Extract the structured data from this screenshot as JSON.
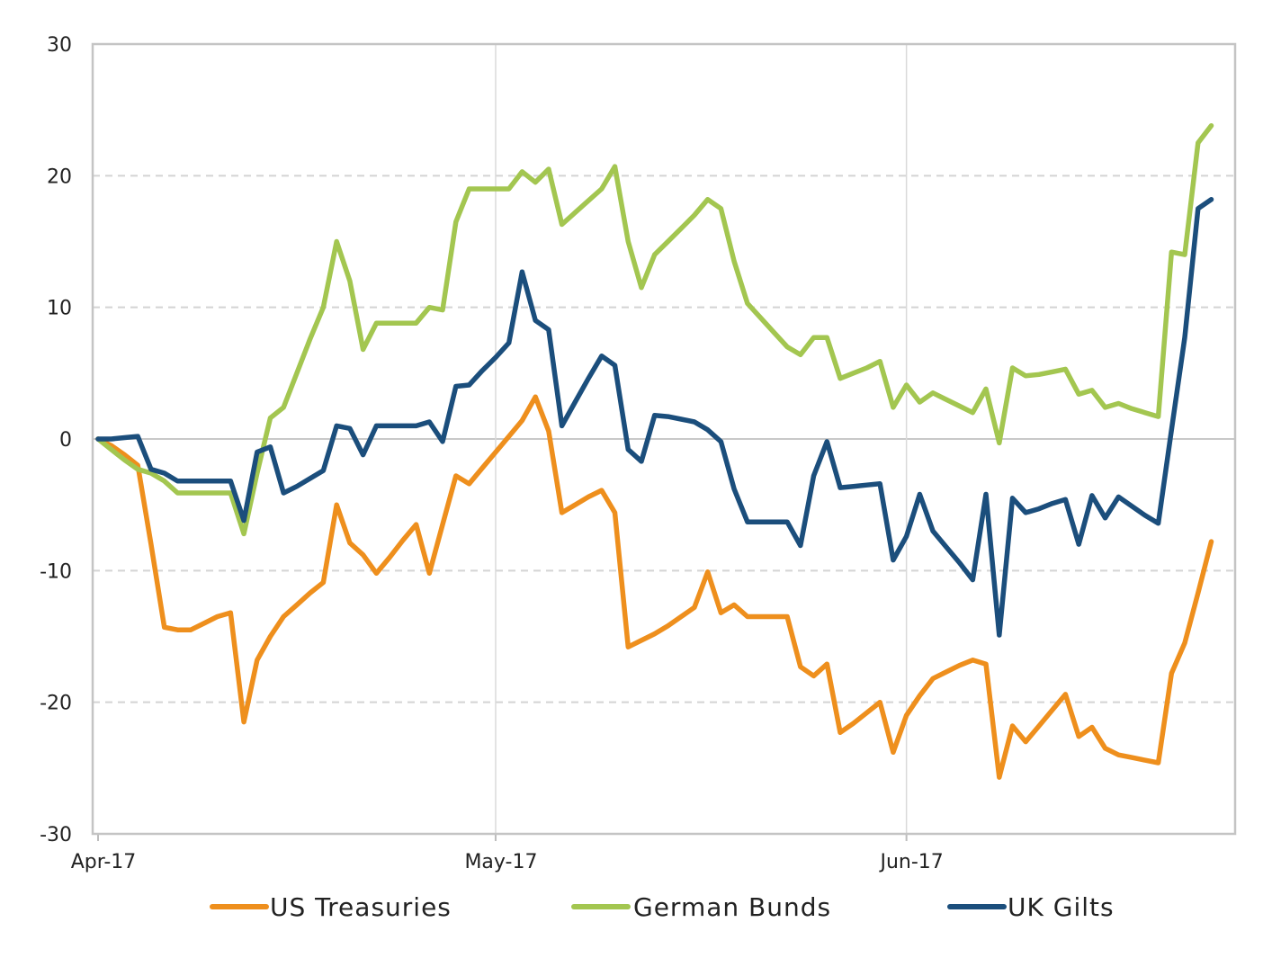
{
  "chart_data": {
    "type": "line",
    "title": "",
    "xlabel": "",
    "ylabel": "",
    "ylim": [
      -30,
      30
    ],
    "yticks": [
      30,
      20,
      10,
      0,
      -10,
      -20,
      -30
    ],
    "xticks": [
      {
        "label": "Apr-17",
        "x": 0
      },
      {
        "label": "May-17",
        "x": 30
      },
      {
        "label": "Jun-17",
        "x": 61
      }
    ],
    "xlim": [
      0,
      85
    ],
    "grid": "horizontal dashed, vertical solid at month starts",
    "legend_position": "bottom",
    "series": [
      {
        "name": "US Treasuries",
        "color": "#EE8F1D",
        "points": [
          [
            0,
            0
          ],
          [
            1,
            -0.5
          ],
          [
            2,
            -1.2
          ],
          [
            3,
            -2
          ],
          [
            4,
            -8
          ],
          [
            5,
            -14.3
          ],
          [
            6,
            -14.5
          ],
          [
            7,
            -14.5
          ],
          [
            8,
            -14
          ],
          [
            9,
            -13.5
          ],
          [
            10,
            -13.2
          ],
          [
            11,
            -21.5
          ],
          [
            12,
            -16.8
          ],
          [
            13,
            -15
          ],
          [
            14,
            -13.5
          ],
          [
            15,
            -12.6
          ],
          [
            16,
            -11.7
          ],
          [
            17,
            -10.9
          ],
          [
            18,
            -5
          ],
          [
            19,
            -7.9
          ],
          [
            20,
            -8.8
          ],
          [
            21,
            -10.2
          ],
          [
            22,
            -9
          ],
          [
            23,
            -7.7
          ],
          [
            24,
            -6.5
          ],
          [
            25,
            -10.2
          ],
          [
            26,
            -6.5
          ],
          [
            27,
            -2.8
          ],
          [
            28,
            -3.4
          ],
          [
            29,
            -2.2
          ],
          [
            30,
            -1
          ],
          [
            31,
            0.2
          ],
          [
            32,
            1.4
          ],
          [
            33,
            3.2
          ],
          [
            34,
            0.6
          ],
          [
            35,
            -5.6
          ],
          [
            36,
            -5
          ],
          [
            37,
            -4.4
          ],
          [
            38,
            -3.9
          ],
          [
            39,
            -5.6
          ],
          [
            40,
            -15.8
          ],
          [
            41,
            -15.3
          ],
          [
            42,
            -14.8
          ],
          [
            43,
            -14.2
          ],
          [
            44,
            -13.5
          ],
          [
            45,
            -12.8
          ],
          [
            46,
            -10.1
          ],
          [
            47,
            -13.2
          ],
          [
            48,
            -12.6
          ],
          [
            49,
            -13.5
          ],
          [
            50,
            -13.5
          ],
          [
            51,
            -13.5
          ],
          [
            52,
            -13.5
          ],
          [
            53,
            -17.3
          ],
          [
            54,
            -18
          ],
          [
            55,
            -17.1
          ],
          [
            56,
            -22.3
          ],
          [
            57,
            -21.6
          ],
          [
            58,
            -20.8
          ],
          [
            59,
            -20
          ],
          [
            60,
            -23.8
          ],
          [
            61,
            -21
          ],
          [
            62,
            -19.5
          ],
          [
            63,
            -18.2
          ],
          [
            64,
            -17.7
          ],
          [
            65,
            -17.2
          ],
          [
            66,
            -16.8
          ],
          [
            67,
            -17.1
          ],
          [
            68,
            -25.7
          ],
          [
            69,
            -21.8
          ],
          [
            70,
            -23
          ],
          [
            71,
            -21.8
          ],
          [
            72,
            -20.6
          ],
          [
            73,
            -19.4
          ],
          [
            74,
            -22.6
          ],
          [
            75,
            -21.9
          ],
          [
            76,
            -23.5
          ],
          [
            77,
            -24
          ],
          [
            78,
            -24.2
          ],
          [
            79,
            -24.4
          ],
          [
            80,
            -24.6
          ],
          [
            81,
            -17.8
          ],
          [
            82,
            -15.5
          ],
          [
            83,
            -11.7
          ],
          [
            84,
            -7.8
          ]
        ]
      },
      {
        "name": "German Bunds",
        "color": "#A3C650",
        "points": [
          [
            0,
            0
          ],
          [
            1,
            -0.8
          ],
          [
            2,
            -1.6
          ],
          [
            3,
            -2.3
          ],
          [
            4,
            -2.6
          ],
          [
            5,
            -3.2
          ],
          [
            6,
            -4.1
          ],
          [
            7,
            -4.1
          ],
          [
            8,
            -4.1
          ],
          [
            9,
            -4.1
          ],
          [
            10,
            -4.1
          ],
          [
            11,
            -7.2
          ],
          [
            12,
            -2.6
          ],
          [
            13,
            1.6
          ],
          [
            14,
            2.4
          ],
          [
            15,
            5
          ],
          [
            16,
            7.6
          ],
          [
            17,
            10
          ],
          [
            18,
            15
          ],
          [
            19,
            12
          ],
          [
            20,
            6.8
          ],
          [
            21,
            8.8
          ],
          [
            22,
            8.8
          ],
          [
            23,
            8.8
          ],
          [
            24,
            8.8
          ],
          [
            25,
            10
          ],
          [
            26,
            9.8
          ],
          [
            27,
            16.5
          ],
          [
            28,
            19
          ],
          [
            29,
            19
          ],
          [
            30,
            19
          ],
          [
            31,
            19
          ],
          [
            32,
            20.3
          ],
          [
            33,
            19.5
          ],
          [
            34,
            20.5
          ],
          [
            35,
            16.3
          ],
          [
            36,
            17.2
          ],
          [
            37,
            18.1
          ],
          [
            38,
            19
          ],
          [
            39,
            20.7
          ],
          [
            40,
            15
          ],
          [
            41,
            11.5
          ],
          [
            42,
            14
          ],
          [
            43,
            15
          ],
          [
            44,
            16
          ],
          [
            45,
            17
          ],
          [
            46,
            18.2
          ],
          [
            47,
            17.5
          ],
          [
            48,
            13.5
          ],
          [
            49,
            10.3
          ],
          [
            50,
            9.2
          ],
          [
            51,
            8.1
          ],
          [
            52,
            7
          ],
          [
            53,
            6.4
          ],
          [
            54,
            7.7
          ],
          [
            55,
            7.7
          ],
          [
            56,
            4.6
          ],
          [
            57,
            5
          ],
          [
            58,
            5.4
          ],
          [
            59,
            5.9
          ],
          [
            60,
            2.4
          ],
          [
            61,
            4.1
          ],
          [
            62,
            2.8
          ],
          [
            63,
            3.5
          ],
          [
            64,
            3
          ],
          [
            65,
            2.5
          ],
          [
            66,
            2
          ],
          [
            67,
            3.8
          ],
          [
            68,
            -0.3
          ],
          [
            69,
            5.4
          ],
          [
            70,
            4.8
          ],
          [
            71,
            4.9
          ],
          [
            72,
            5.1
          ],
          [
            73,
            5.3
          ],
          [
            74,
            3.4
          ],
          [
            75,
            3.7
          ],
          [
            76,
            2.4
          ],
          [
            77,
            2.7
          ],
          [
            78,
            2.3
          ],
          [
            79,
            2
          ],
          [
            80,
            1.7
          ],
          [
            81,
            14.2
          ],
          [
            82,
            14
          ],
          [
            83,
            22.5
          ],
          [
            84,
            23.8
          ]
        ]
      },
      {
        "name": "UK Gilts",
        "color": "#1B4E7C",
        "points": [
          [
            0,
            0
          ],
          [
            1,
            0
          ],
          [
            2,
            0.1
          ],
          [
            3,
            0.2
          ],
          [
            4,
            -2.3
          ],
          [
            5,
            -2.6
          ],
          [
            6,
            -3.2
          ],
          [
            7,
            -3.2
          ],
          [
            8,
            -3.2
          ],
          [
            9,
            -3.2
          ],
          [
            10,
            -3.2
          ],
          [
            11,
            -6.2
          ],
          [
            12,
            -1
          ],
          [
            13,
            -0.6
          ],
          [
            14,
            -4.1
          ],
          [
            15,
            -3.6
          ],
          [
            16,
            -3
          ],
          [
            17,
            -2.4
          ],
          [
            18,
            1
          ],
          [
            19,
            0.8
          ],
          [
            20,
            -1.2
          ],
          [
            21,
            1
          ],
          [
            22,
            1
          ],
          [
            23,
            1
          ],
          [
            24,
            1
          ],
          [
            25,
            1.3
          ],
          [
            26,
            -0.2
          ],
          [
            27,
            4
          ],
          [
            28,
            4.1
          ],
          [
            29,
            5.2
          ],
          [
            30,
            6.2
          ],
          [
            31,
            7.3
          ],
          [
            32,
            12.7
          ],
          [
            33,
            9
          ],
          [
            34,
            8.3
          ],
          [
            35,
            1
          ],
          [
            36,
            2.8
          ],
          [
            37,
            4.6
          ],
          [
            38,
            6.3
          ],
          [
            39,
            5.6
          ],
          [
            40,
            -0.8
          ],
          [
            41,
            -1.7
          ],
          [
            42,
            1.8
          ],
          [
            43,
            1.7
          ],
          [
            44,
            1.5
          ],
          [
            45,
            1.3
          ],
          [
            46,
            0.7
          ],
          [
            47,
            -0.2
          ],
          [
            48,
            -3.8
          ],
          [
            49,
            -6.3
          ],
          [
            50,
            -6.3
          ],
          [
            51,
            -6.3
          ],
          [
            52,
            -6.3
          ],
          [
            53,
            -8.1
          ],
          [
            54,
            -2.8
          ],
          [
            55,
            -0.2
          ],
          [
            56,
            -3.7
          ],
          [
            57,
            -3.6
          ],
          [
            58,
            -3.5
          ],
          [
            59,
            -3.4
          ],
          [
            60,
            -9.2
          ],
          [
            61,
            -7.4
          ],
          [
            62,
            -4.2
          ],
          [
            63,
            -7
          ],
          [
            64,
            -8.2
          ],
          [
            65,
            -9.4
          ],
          [
            66,
            -10.7
          ],
          [
            67,
            -4.2
          ],
          [
            68,
            -14.9
          ],
          [
            69,
            -4.5
          ],
          [
            70,
            -5.6
          ],
          [
            71,
            -5.3
          ],
          [
            72,
            -4.9
          ],
          [
            73,
            -4.6
          ],
          [
            74,
            -8
          ],
          [
            75,
            -4.3
          ],
          [
            76,
            -6
          ],
          [
            77,
            -4.4
          ],
          [
            78,
            -5.1
          ],
          [
            79,
            -5.8
          ],
          [
            80,
            -6.4
          ],
          [
            81,
            0.7
          ],
          [
            82,
            7.7
          ],
          [
            83,
            17.5
          ],
          [
            84,
            18.2
          ]
        ]
      }
    ]
  }
}
